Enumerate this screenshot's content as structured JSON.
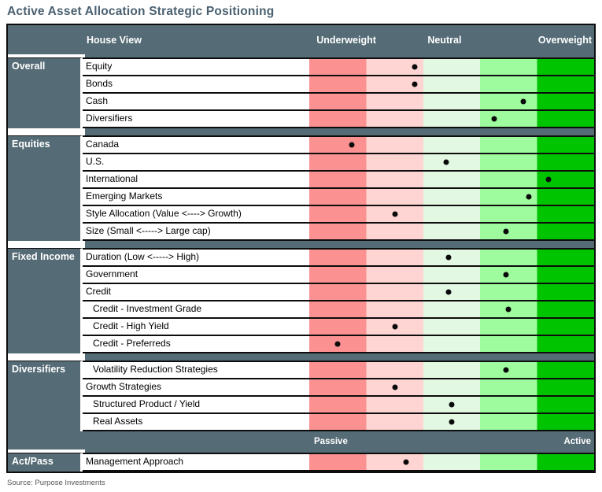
{
  "title": "Active Asset Allocation Strategic Positioning",
  "source_note": "Source: Purpose Investments",
  "header": {
    "house_view_label": "House View",
    "underweight_label": "Underweight",
    "neutral_label": "Neutral",
    "overweight_label": "Overweight"
  },
  "approach_scale": {
    "left_label": "Passive",
    "right_label": "Active"
  },
  "colors": {
    "title_text": "#4A6070",
    "header_bg": "#556B76",
    "band_strong_underweight": "#FB9191",
    "band_underweight": "#FFD5D3",
    "band_neutral": "#E3F8E3",
    "band_overweight": "#9EFB9E",
    "band_strong_overweight": "#00C400",
    "dot": "#0A0A0A"
  },
  "chart_data": {
    "type": "table",
    "title": "Active Asset Allocation Strategic Positioning",
    "x_axis": {
      "labels": [
        "Underweight",
        "Neutral",
        "Overweight"
      ],
      "range_pct": [
        0,
        100
      ],
      "bands": [
        {
          "name": "strong-underweight",
          "from_pct": 0,
          "to_pct": 20
        },
        {
          "name": "underweight",
          "from_pct": 20,
          "to_pct": 40
        },
        {
          "name": "neutral",
          "from_pct": 40,
          "to_pct": 60
        },
        {
          "name": "overweight",
          "from_pct": 60,
          "to_pct": 80
        },
        {
          "name": "strong-overweight",
          "from_pct": 80,
          "to_pct": 100
        }
      ]
    },
    "sections": [
      {
        "name": "Overall",
        "rows": [
          {
            "label": "Equity",
            "position_pct": 37,
            "indent": 0
          },
          {
            "label": "Bonds",
            "position_pct": 37,
            "indent": 0
          },
          {
            "label": "Cash",
            "position_pct": 75,
            "indent": 0
          },
          {
            "label": "Diversifiers",
            "position_pct": 65,
            "indent": 0
          }
        ]
      },
      {
        "name": "Equities",
        "rows": [
          {
            "label": "Canada",
            "position_pct": 15,
            "indent": 0
          },
          {
            "label": "U.S.",
            "position_pct": 48,
            "indent": 0
          },
          {
            "label": "International",
            "position_pct": 84,
            "indent": 0
          },
          {
            "label": "Emerging Markets",
            "position_pct": 77,
            "indent": 0
          },
          {
            "label": "Style Allocation (Value <----> Growth)",
            "position_pct": 30,
            "indent": 0
          },
          {
            "label": "Size (Small <----->  Large cap)",
            "position_pct": 69,
            "indent": 0
          }
        ]
      },
      {
        "name": "Fixed Income",
        "rows": [
          {
            "label": "Duration (Low <-----> High)",
            "position_pct": 49,
            "indent": 0
          },
          {
            "label": "Government",
            "position_pct": 69,
            "indent": 0
          },
          {
            "label": "Credit",
            "position_pct": 49,
            "indent": 0
          },
          {
            "label": "Credit - Investment Grade",
            "position_pct": 70,
            "indent": 1
          },
          {
            "label": "Credit - High Yield",
            "position_pct": 30,
            "indent": 1
          },
          {
            "label": "Credit - Preferreds",
            "position_pct": 10,
            "indent": 1
          }
        ]
      },
      {
        "name": "Diversifiers",
        "rows": [
          {
            "label": "Volatility Reduction Strategies",
            "position_pct": 69,
            "indent": 1
          },
          {
            "label": "Growth Strategies",
            "position_pct": 30,
            "indent": 0
          },
          {
            "label": "Structured Product / Yield",
            "position_pct": 50,
            "indent": 1
          },
          {
            "label": "Real Assets",
            "position_pct": 50,
            "indent": 1
          }
        ]
      },
      {
        "name": "Act/Pass",
        "rows": [
          {
            "label": "Management Approach",
            "position_pct": 34,
            "indent": 0
          }
        ]
      }
    ]
  }
}
